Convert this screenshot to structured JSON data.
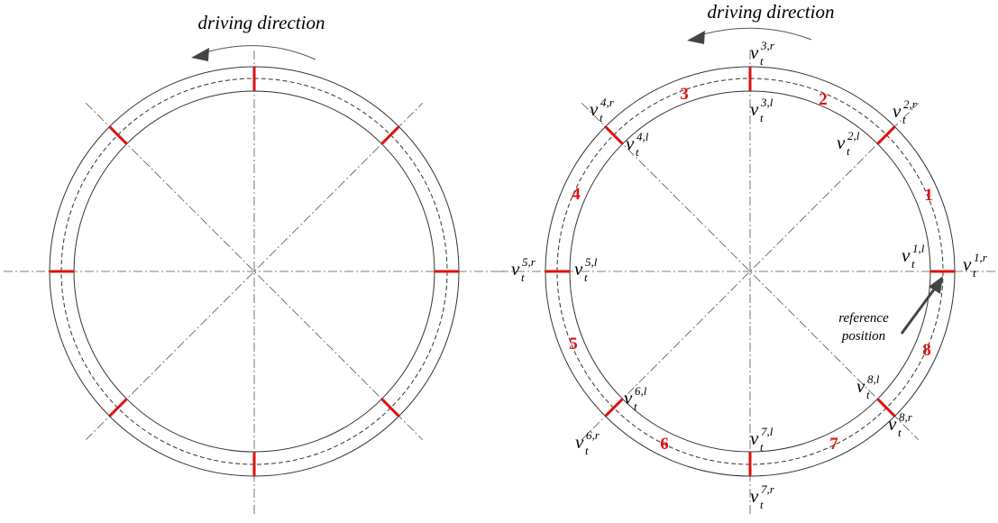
{
  "left": {
    "title": "driving direction"
  },
  "right": {
    "title": "driving direction",
    "var_symbol": "v",
    "sub": "t",
    "segments": [
      {
        "label": "1"
      },
      {
        "label": "2"
      },
      {
        "label": "3"
      },
      {
        "label": "4"
      },
      {
        "label": "5"
      },
      {
        "label": "6"
      },
      {
        "label": "7"
      },
      {
        "label": "8"
      }
    ],
    "points": [
      {
        "outer": "1,r",
        "inner": "1,l"
      },
      {
        "outer": "2,r",
        "inner": "2,l"
      },
      {
        "outer": "3,r",
        "inner": "3,l"
      },
      {
        "outer": "4,r",
        "inner": "4,l"
      },
      {
        "outer": "5,r",
        "inner": "5,l"
      },
      {
        "outer": "6,r",
        "inner": "6,l"
      },
      {
        "outer": "7,r",
        "inner": "7,l"
      },
      {
        "outer": "8,r",
        "inner": "8,l"
      }
    ],
    "reference": {
      "line1": "reference",
      "line2": "position"
    }
  },
  "colors": {
    "marker": "#e01010",
    "line": "#333333",
    "arrow": "#444444"
  }
}
